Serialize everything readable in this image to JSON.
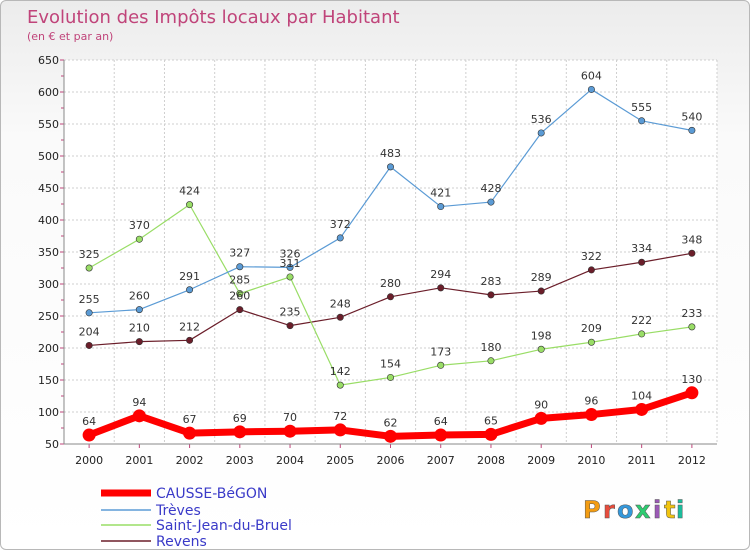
{
  "chart_data": {
    "type": "line",
    "title": "Evolution des Impôts locaux par Habitant",
    "subtitle": "(en € et par an)",
    "x": [
      "2000",
      "2001",
      "2002",
      "2003",
      "2004",
      "2005",
      "2006",
      "2007",
      "2008",
      "2009",
      "2010",
      "2011",
      "2012"
    ],
    "ylim": [
      50,
      650
    ],
    "yticks": [
      50,
      100,
      150,
      200,
      250,
      300,
      350,
      400,
      450,
      500,
      550,
      600,
      650
    ],
    "grid": true,
    "legend_position": "bottom-left",
    "series": [
      {
        "name": "CAUSSE-BéGON",
        "color": "#ff0000",
        "values": [
          64,
          94,
          67,
          69,
          70,
          72,
          62,
          64,
          65,
          90,
          96,
          104,
          130
        ]
      },
      {
        "name": "Trèves",
        "color": "#5b9bd5",
        "values": [
          255,
          260,
          291,
          327,
          326,
          372,
          483,
          421,
          428,
          536,
          604,
          555,
          540
        ]
      },
      {
        "name": "Saint-Jean-du-Bruel",
        "color": "#99dd66",
        "values": [
          325,
          370,
          424,
          285,
          311,
          142,
          154,
          173,
          180,
          198,
          209,
          222,
          233
        ]
      },
      {
        "name": "Revens",
        "color": "#6b1e2a",
        "values": [
          204,
          210,
          212,
          260,
          235,
          248,
          280,
          294,
          283,
          289,
          322,
          334,
          348
        ]
      }
    ],
    "data_labels": [
      [
        "64",
        "94",
        "67",
        "69",
        "70",
        "72",
        "62",
        "64",
        "65",
        "90",
        "96",
        "104",
        "130"
      ],
      [
        "255",
        "260",
        "291",
        "327",
        "326",
        "372",
        "483",
        "421",
        "428",
        "536",
        "604",
        "555",
        "540"
      ],
      [
        "325",
        "370",
        "424",
        "285",
        "311",
        "142",
        "154",
        "173",
        "180",
        "198",
        "209",
        "222",
        "233"
      ],
      [
        "204",
        "210",
        "212",
        "260",
        "235",
        "248",
        "280",
        "294",
        "283",
        "289",
        "322",
        "334",
        "348"
      ]
    ]
  },
  "logo": {
    "letters": [
      "P",
      "r",
      "o",
      "x",
      "i",
      "t",
      "i"
    ],
    "colors": [
      "#f39c12",
      "#e74c3c",
      "#3498db",
      "#2ecc71",
      "#9b59b6",
      "#f1c40f",
      "#1abc9c"
    ]
  }
}
